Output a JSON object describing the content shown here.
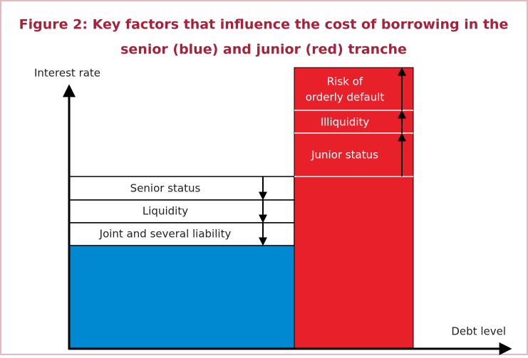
{
  "title": [
    "Figure 2: Key factors that influence the cost of borrowing in the",
    "senior (blue) and junior (red) tranche"
  ],
  "y_axis_label": "Interest rate",
  "x_axis_label": "Debt level",
  "senior_factors": [
    "Senior status",
    "Liquidity",
    "Joint and several liability"
  ],
  "junior_factors": [
    [
      "Risk of",
      "orderly default"
    ],
    [
      "Illiquidity"
    ],
    [
      "Junior status"
    ]
  ]
}
